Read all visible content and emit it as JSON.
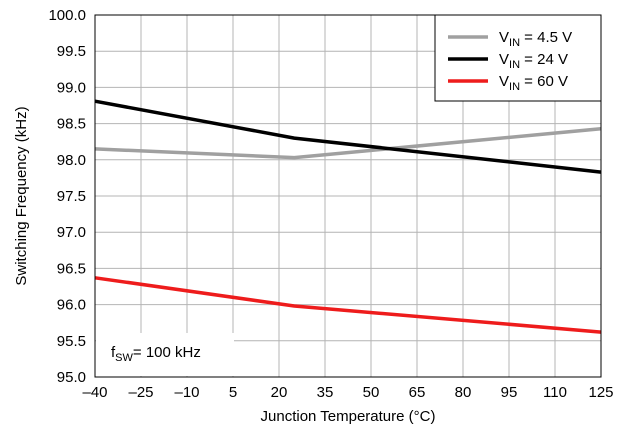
{
  "chart_data": {
    "type": "line",
    "xlabel": "Junction Temperature (°C)",
    "ylabel": "Switching Frequency (kHz)",
    "xlim": [
      -40,
      125
    ],
    "ylim": [
      95.0,
      100.0
    ],
    "x_ticks": [
      -40,
      -25,
      -10,
      5,
      20,
      35,
      50,
      65,
      80,
      95,
      110,
      125
    ],
    "x_tick_labels": [
      "–40",
      "–25",
      "–10",
      "5",
      "20",
      "35",
      "50",
      "65",
      "80",
      "95",
      "110",
      "125"
    ],
    "y_ticks": [
      95.0,
      95.5,
      96.0,
      96.5,
      97.0,
      97.5,
      98.0,
      98.5,
      99.0,
      99.5,
      100.0
    ],
    "y_tick_labels": [
      "95.0",
      "95.5",
      "96.0",
      "96.5",
      "97.0",
      "97.5",
      "98.0",
      "98.5",
      "99.0",
      "99.5",
      "100.0"
    ],
    "grid": true,
    "legend_position": "top-right",
    "annotation": {
      "prefix": "f",
      "sub": "SW",
      "suffix": "=  100 kHz"
    },
    "series": [
      {
        "name": "VIN = 4.5 V",
        "label_prefix": "V",
        "label_sub": "IN",
        "label_suffix": " = 4.5 V",
        "color": "#a0a0a0",
        "x": [
          -40,
          25,
          125
        ],
        "y": [
          98.15,
          98.03,
          98.43
        ]
      },
      {
        "name": "VIN = 24 V",
        "label_prefix": "V",
        "label_sub": "IN",
        "label_suffix": " = 24 V",
        "color": "#000000",
        "x": [
          -40,
          25,
          125
        ],
        "y": [
          98.81,
          98.3,
          97.83
        ]
      },
      {
        "name": "VIN = 60 V",
        "label_prefix": "V",
        "label_sub": "IN",
        "label_suffix": " = 60 V",
        "color": "#ee1c1c",
        "x": [
          -40,
          25,
          125
        ],
        "y": [
          96.37,
          95.98,
          95.62
        ]
      }
    ]
  }
}
